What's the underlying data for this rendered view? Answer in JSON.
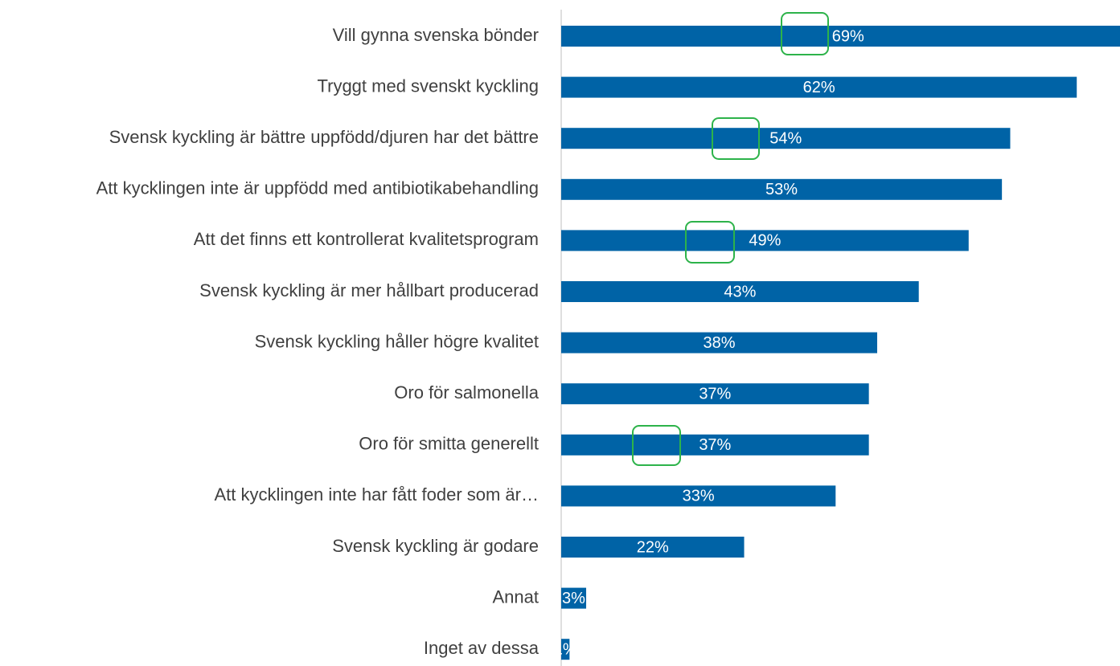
{
  "chart_data": {
    "type": "bar",
    "orientation": "horizontal",
    "categories": [
      "Vill gynna svenska bönder",
      "Tryggt med svenskt kyckling",
      "Svensk kyckling är bättre uppfödd/djuren har det bättre",
      "Att kycklingen inte är uppfödd med antibiotikabehandling",
      "Att det finns ett kontrollerat kvalitetsprogram",
      "Svensk kyckling är mer hållbart producerad",
      "Svensk kyckling håller högre kvalitet",
      "Oro för salmonella",
      "Oro för smitta generellt",
      "Att kycklingen inte har fått foder som är…",
      "Svensk kyckling är godare",
      "Annat",
      "Inget av dessa"
    ],
    "values": [
      69,
      62,
      54,
      53,
      49,
      43,
      38,
      37,
      37,
      33,
      22,
      3,
      1
    ],
    "value_labels": [
      "69%",
      "62%",
      "54%",
      "53%",
      "49%",
      "43%",
      "38%",
      "37%",
      "37%",
      "33%",
      "22%",
      "3%",
      "1%"
    ],
    "color": "#0063a6",
    "xlim": [
      0,
      67.2
    ]
  }
}
